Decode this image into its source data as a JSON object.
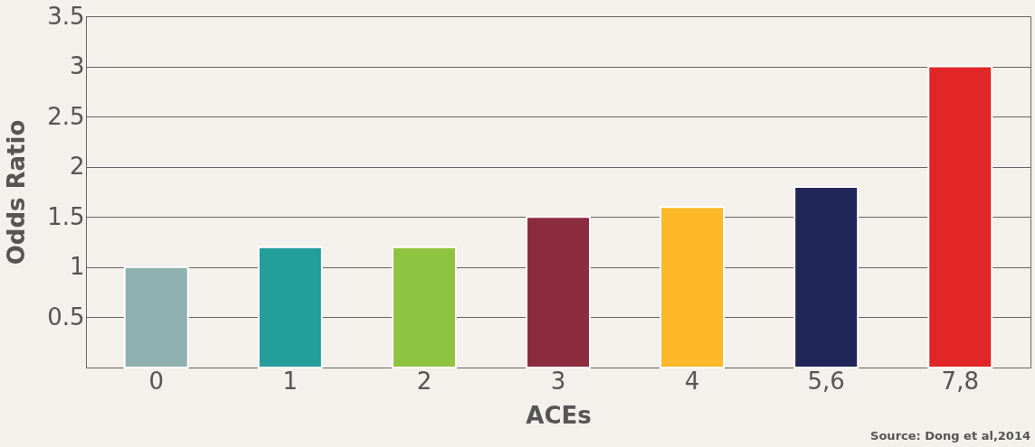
{
  "chart_data": {
    "type": "bar",
    "xlabel": "ACEs",
    "ylabel": "Odds Ratio",
    "categories": [
      "0",
      "1",
      "2",
      "3",
      "4",
      "5,6",
      "7,8"
    ],
    "values": [
      1.0,
      1.2,
      1.2,
      1.5,
      1.6,
      1.8,
      3.0
    ],
    "colors": [
      "#8fb0ae",
      "#239e9b",
      "#8fc440",
      "#8b2c3e",
      "#fcb827",
      "#21265a",
      "#e02626"
    ],
    "ylim": [
      0,
      3.5
    ],
    "yticks": [
      0.5,
      1,
      1.5,
      2,
      2.5,
      3,
      3.5
    ],
    "grid": "y",
    "annotations": [
      "Source: Dong et al,2014"
    ]
  }
}
